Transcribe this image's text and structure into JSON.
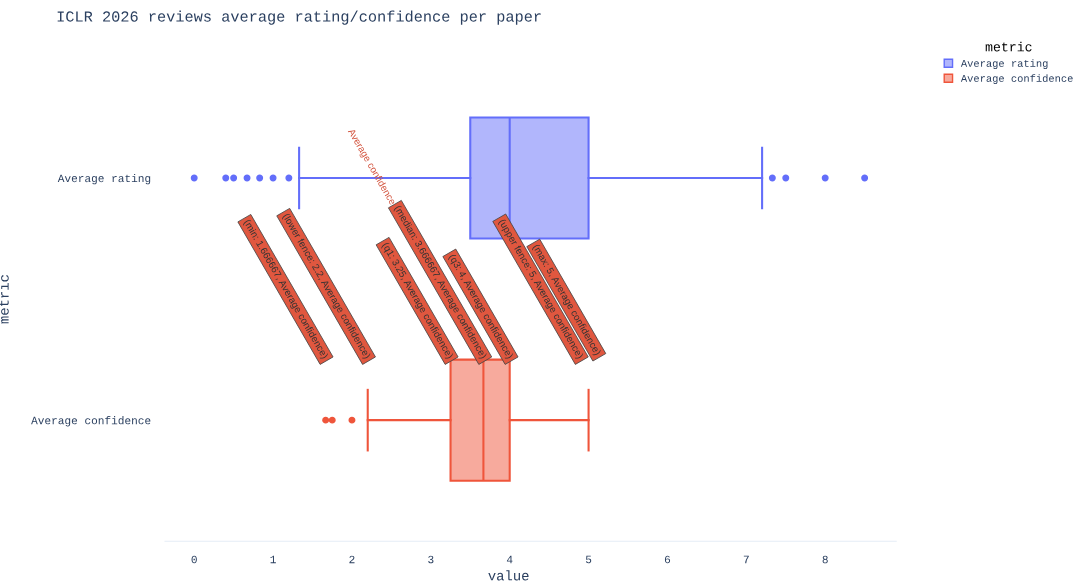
{
  "chart_data": {
    "type": "box",
    "orientation": "horizontal",
    "title": "ICLR 2026 reviews average rating/confidence per paper",
    "xlabel": "value",
    "ylabel": "metric",
    "legend_title": "metric",
    "legend": "top right",
    "grid": false,
    "categories": [
      "Average rating",
      "Average confidence"
    ],
    "xlim": [
      -0.37,
      8.9
    ],
    "xticks": [
      0,
      1,
      2,
      3,
      4,
      5,
      6,
      7,
      8
    ],
    "series": [
      {
        "name": "Average rating",
        "color": "#636efa",
        "boxes": [
          {
            "low": 1.33,
            "q1": 3.5,
            "median": 4.0,
            "q3": 5.0,
            "high": 7.2,
            "outliers": [
              0,
              0.4,
              0.5,
              0.67,
              0.83,
              1.0,
              1.2,
              7.33,
              7.5,
              8.0,
              8.5
            ]
          },
          null
        ]
      },
      {
        "name": "Average confidence",
        "color": "#ef553b",
        "boxes": [
          null,
          {
            "low": 2.2,
            "q1": 3.25,
            "median": 3.666667,
            "q3": 4.0,
            "high": 5.0,
            "outliers": [
              1.666667,
              1.75,
              2.0
            ]
          }
        ]
      }
    ],
    "annotations": [
      "(min: 1.666667, Average confidence)",
      "(lower fence: 2.2, Average confidence)",
      "(q1: 3.25, Average confidence)",
      "(median: 3.666667, Average confidence)",
      "(q3: 4, Average confidence)",
      "(upper fence: 5, Average confidence)",
      "(max: 5, Average confidence)",
      "Average confidence"
    ]
  }
}
